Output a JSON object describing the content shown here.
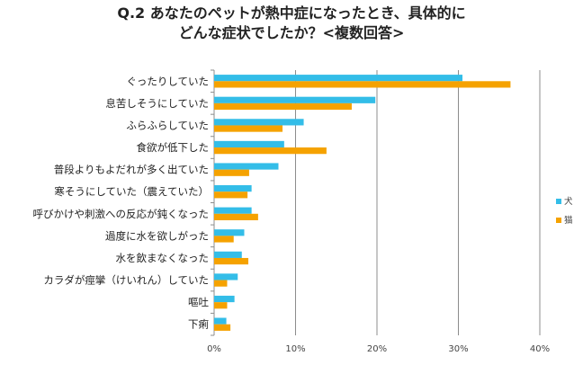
{
  "chart_data": {
    "type": "bar",
    "orientation": "horizontal",
    "title_lines": [
      "Q.2 あなたのペットが熱中症になったとき、具体的に",
      "どんな症状でしたか？<複数回答>"
    ],
    "categories": [
      "ぐったりしていた",
      "息苦しそうにしていた",
      "ふらふらしていた",
      "食欲が低下した",
      "普段よりもよだれが多く出ていた",
      "寒そうにしていた（震えていた）",
      "呼びかけや刺激への反応が鈍くなった",
      "過度に水を欲しがった",
      "水を飲まなくなった",
      "カラダが痙攣（けいれん）していた",
      "嘔吐",
      "下痢"
    ],
    "series": [
      {
        "name": "犬",
        "color": "#33bde8",
        "values": [
          30.5,
          19.8,
          11.0,
          8.6,
          7.9,
          4.6,
          4.6,
          3.7,
          3.4,
          2.9,
          2.5,
          1.5
        ]
      },
      {
        "name": "猫",
        "color": "#f5a200",
        "values": [
          36.4,
          16.9,
          8.4,
          13.8,
          4.3,
          4.1,
          5.4,
          2.4,
          4.2,
          1.6,
          1.6,
          2.0
        ]
      }
    ],
    "x_ticks": [
      "0%",
      "10%",
      "20%",
      "30%",
      "40%"
    ],
    "xlim": [
      0,
      40
    ],
    "grid": true,
    "legend_position": "right"
  }
}
